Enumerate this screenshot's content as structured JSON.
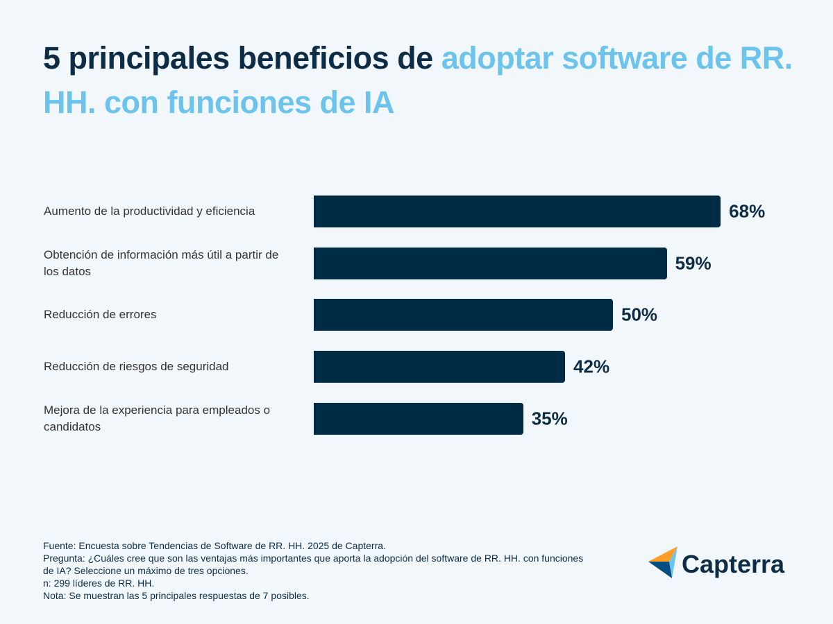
{
  "chart_data": {
    "type": "bar",
    "orientation": "horizontal",
    "title_parts": [
      "5 principales beneficios de",
      "adoptar software de RR. HH. con funciones de IA"
    ],
    "title_colors": [
      "#0d2c46",
      "#6cc4ec"
    ],
    "categories": [
      "Aumento de la productividad y eficiencia",
      "Obtención de información más útil a partir de los datos",
      "Reducción de errores",
      "Reducción de riesgos de seguridad",
      "Mejora de la experiencia para empleados o candidatos"
    ],
    "values": [
      68,
      59,
      50,
      42,
      35
    ],
    "value_labels": [
      "68%",
      "59%",
      "50%",
      "42%",
      "35%"
    ],
    "color": "#002b45"
  },
  "notes": [
    "Fuente: Encuesta sobre Tendencias de Software de RR. HH. 2025 de Capterra.",
    "Pregunta: ¿Cuáles cree que son las ventajas más importantes que aporta la adopción del software de RR. HH. con funciones de IA? Seleccione un máximo de tres opciones.",
    "n: 299 líderes de RR. HH.",
    "Nota: Se muestran las 5 principales respuestas de 7 posibles."
  ],
  "logo": "Capterra"
}
